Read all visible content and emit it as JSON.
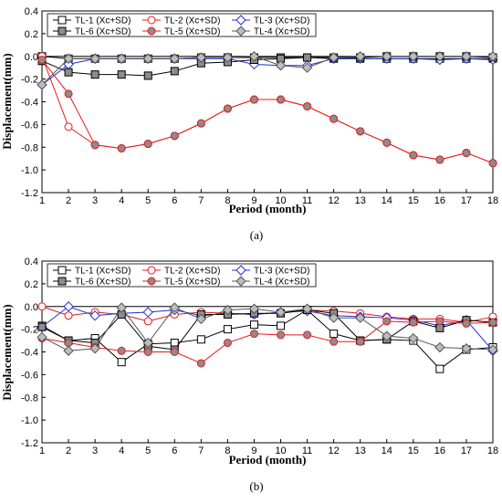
{
  "chart_data": [
    {
      "type": "line",
      "caption": "(a)",
      "xlabel": "Period (month)",
      "ylabel": "Displacement(mm)",
      "xlim": [
        1,
        18
      ],
      "ylim": [
        -1.2,
        0.4
      ],
      "x_ticks": [
        "1",
        "2",
        "3",
        "4",
        "5",
        "6",
        "7",
        "8",
        "9",
        "10",
        "11",
        "12",
        "13",
        "14",
        "15",
        "16",
        "17",
        "18"
      ],
      "y_ticks": [
        "0.4",
        "0.2",
        "0.0",
        "-0.2",
        "-0.4",
        "-0.6",
        "-0.8",
        "-1.0",
        "-1.2"
      ],
      "legend_position": "top-left",
      "x": [
        1,
        2,
        3,
        4,
        5,
        6,
        7,
        8,
        9,
        10,
        11,
        12,
        13,
        14,
        15,
        16,
        17,
        18
      ],
      "series": [
        {
          "name": "TL-1 (Xc+SD)",
          "color": "#000000",
          "marker": "square",
          "fill": "none",
          "values": [
            0.0,
            -0.02,
            -0.02,
            -0.02,
            -0.02,
            -0.02,
            -0.01,
            -0.01,
            -0.01,
            -0.01,
            -0.01,
            -0.02,
            -0.02,
            -0.02,
            -0.02,
            -0.02,
            -0.02,
            -0.02
          ]
        },
        {
          "name": "TL-2 (Xc+SD)",
          "color": "#e8191b",
          "marker": "circle",
          "fill": "none",
          "values": [
            0.0,
            -0.62,
            -0.78,
            -0.81,
            -0.77,
            -0.7,
            -0.59,
            -0.46,
            -0.38,
            -0.38,
            -0.44,
            -0.55,
            -0.66,
            -0.76,
            -0.87,
            -0.91,
            -0.85,
            -0.94
          ]
        },
        {
          "name": "TL-3 (Xc+SD)",
          "color": "#1f2fd6",
          "marker": "diamond",
          "fill": "none",
          "values": [
            -0.25,
            -0.07,
            -0.02,
            -0.02,
            -0.02,
            -0.02,
            -0.02,
            -0.02,
            -0.07,
            -0.08,
            -0.08,
            -0.02,
            -0.02,
            -0.02,
            -0.02,
            -0.03,
            -0.02,
            -0.03
          ]
        },
        {
          "name": "TL-6 (Xc+SD)",
          "color": "#000000",
          "marker": "square",
          "fill": "#8c8c8c",
          "values": [
            -0.04,
            -0.14,
            -0.16,
            -0.16,
            -0.17,
            -0.13,
            -0.06,
            -0.05,
            -0.03,
            -0.02,
            -0.01,
            -0.01,
            -0.01,
            0.0,
            0.0,
            0.0,
            0.0,
            -0.01
          ]
        },
        {
          "name": "TL-5 (Xc+SD)",
          "color": "#e8191b",
          "marker": "circle",
          "fill": "#8c8c8c",
          "values": [
            -0.03,
            -0.33,
            -0.78,
            -0.81,
            -0.77,
            -0.7,
            -0.59,
            -0.46,
            -0.38,
            -0.38,
            -0.44,
            -0.55,
            -0.66,
            -0.76,
            -0.87,
            -0.91,
            -0.85,
            -0.94
          ]
        },
        {
          "name": "TL-4 (Xc+SD)",
          "color": "#555555",
          "marker": "diamond",
          "fill": "#bdbdbd",
          "values": [
            -0.25,
            -0.02,
            -0.02,
            -0.02,
            -0.02,
            -0.02,
            -0.01,
            -0.01,
            0.0,
            -0.08,
            -0.1,
            -0.01,
            0.0,
            0.0,
            0.0,
            0.0,
            0.0,
            0.0
          ]
        }
      ]
    },
    {
      "type": "line",
      "caption": "(b)",
      "xlabel": "Period (month)",
      "ylabel": "Displacement(mm)",
      "xlim": [
        1,
        18
      ],
      "ylim": [
        -1.2,
        0.4
      ],
      "x_ticks": [
        "1",
        "2",
        "3",
        "4",
        "5",
        "6",
        "7",
        "8",
        "9",
        "10",
        "11",
        "12",
        "13",
        "14",
        "15",
        "16",
        "17",
        "18"
      ],
      "y_ticks": [
        "0.4",
        "0.2",
        "0.0",
        "-0.2",
        "-0.4",
        "-0.6",
        "-0.8",
        "-1.0",
        "-1.2"
      ],
      "legend_position": "top-left",
      "x": [
        1,
        2,
        3,
        4,
        5,
        6,
        7,
        8,
        9,
        10,
        11,
        12,
        13,
        14,
        15,
        16,
        17,
        18
      ],
      "series": [
        {
          "name": "TL-1 (Xc+SD)",
          "color": "#000000",
          "marker": "square",
          "fill": "none",
          "values": [
            -0.17,
            -0.3,
            -0.28,
            -0.49,
            -0.33,
            -0.32,
            -0.29,
            -0.2,
            -0.16,
            -0.17,
            -0.03,
            -0.24,
            -0.3,
            -0.29,
            -0.3,
            -0.55,
            -0.38,
            -0.36
          ]
        },
        {
          "name": "TL-2 (Xc+SD)",
          "color": "#e8191b",
          "marker": "circle",
          "fill": "none",
          "values": [
            0.0,
            -0.08,
            -0.05,
            -0.07,
            -0.13,
            -0.07,
            -0.05,
            -0.06,
            -0.07,
            -0.05,
            -0.03,
            -0.04,
            -0.06,
            -0.09,
            -0.11,
            -0.11,
            -0.14,
            -0.09
          ]
        },
        {
          "name": "TL-3 (Xc+SD)",
          "color": "#1f2fd6",
          "marker": "diamond",
          "fill": "none",
          "values": [
            -0.18,
            0.0,
            -0.08,
            -0.06,
            -0.05,
            -0.03,
            -0.08,
            -0.06,
            -0.07,
            -0.05,
            -0.04,
            -0.08,
            -0.09,
            -0.1,
            -0.12,
            -0.17,
            -0.12,
            -0.39
          ]
        },
        {
          "name": "TL-6 (Xc+SD)",
          "color": "#000000",
          "marker": "square",
          "fill": "#8c8c8c",
          "values": [
            -0.18,
            -0.3,
            -0.32,
            -0.07,
            -0.35,
            -0.38,
            -0.07,
            -0.07,
            -0.06,
            -0.06,
            -0.03,
            -0.06,
            -0.3,
            -0.29,
            -0.13,
            -0.19,
            -0.12,
            -0.14
          ]
        },
        {
          "name": "TL-5 (Xc+SD)",
          "color": "#e8191b",
          "marker": "circle",
          "fill": "#8c8c8c",
          "values": [
            -0.28,
            -0.32,
            -0.36,
            -0.39,
            -0.4,
            -0.4,
            -0.5,
            -0.32,
            -0.24,
            -0.25,
            -0.25,
            -0.31,
            -0.31,
            -0.13,
            -0.14,
            -0.13,
            -0.15,
            -0.14
          ]
        },
        {
          "name": "TL-4 (Xc+SD)",
          "color": "#555555",
          "marker": "diamond",
          "fill": "#bdbdbd",
          "values": [
            -0.27,
            -0.39,
            -0.37,
            -0.01,
            -0.32,
            -0.01,
            -0.11,
            -0.03,
            -0.02,
            -0.05,
            -0.02,
            -0.1,
            -0.1,
            -0.26,
            -0.28,
            -0.36,
            -0.37,
            -0.38
          ]
        }
      ]
    }
  ]
}
